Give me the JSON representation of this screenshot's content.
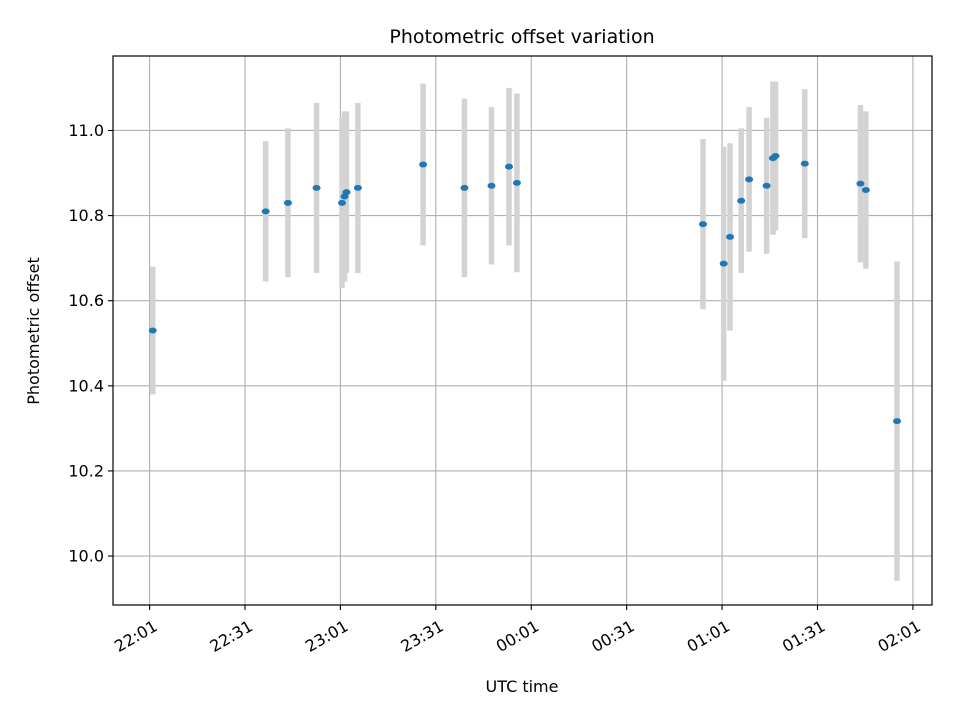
{
  "chart_data": {
    "type": "scatter",
    "title": "Photometric offset variation",
    "xlabel": "UTC time",
    "ylabel": "Photometric offset",
    "x_ticks": [
      "22:01",
      "22:31",
      "23:01",
      "23:31",
      "00:01",
      "00:31",
      "01:01",
      "01:31",
      "02:01"
    ],
    "x_tick_minutes": [
      0,
      30,
      60,
      90,
      120,
      150,
      180,
      210,
      240
    ],
    "x_start": "22:01",
    "x_unit": "minutes after 22:01 UTC",
    "xlim": [
      -11.5,
      246
    ],
    "y_ticks": [
      "10.0",
      "10.2",
      "10.4",
      "10.6",
      "10.8",
      "11.0"
    ],
    "y_tick_values": [
      10.0,
      10.2,
      10.4,
      10.6,
      10.8,
      11.0
    ],
    "ylim": [
      9.885,
      11.175
    ],
    "grid": true,
    "colors": {
      "point": "#1f77b4",
      "errorbar": "#d3d3d3",
      "grid": "#b0b0b0"
    },
    "points": [
      {
        "x": 1,
        "y": 10.53,
        "err": 0.15
      },
      {
        "x": 36.5,
        "y": 10.81,
        "err": 0.165
      },
      {
        "x": 43.5,
        "y": 10.83,
        "err": 0.175
      },
      {
        "x": 52.5,
        "y": 10.865,
        "err": 0.2
      },
      {
        "x": 60.5,
        "y": 10.83,
        "err": 0.2
      },
      {
        "x": 61.3,
        "y": 10.845,
        "err": 0.2
      },
      {
        "x": 61.9,
        "y": 10.855,
        "err": 0.19
      },
      {
        "x": 65.5,
        "y": 10.865,
        "err": 0.2
      },
      {
        "x": 86,
        "y": 10.92,
        "err": 0.19
      },
      {
        "x": 99,
        "y": 10.865,
        "err": 0.21
      },
      {
        "x": 107.5,
        "y": 10.87,
        "err": 0.185
      },
      {
        "x": 113,
        "y": 10.915,
        "err": 0.185
      },
      {
        "x": 115.5,
        "y": 10.877,
        "err": 0.21
      },
      {
        "x": 174,
        "y": 10.78,
        "err": 0.2
      },
      {
        "x": 180.5,
        "y": 10.687,
        "err": 0.275
      },
      {
        "x": 182.5,
        "y": 10.75,
        "err": 0.22
      },
      {
        "x": 186,
        "y": 10.835,
        "err": 0.17
      },
      {
        "x": 188.5,
        "y": 10.885,
        "err": 0.17
      },
      {
        "x": 194,
        "y": 10.87,
        "err": 0.16
      },
      {
        "x": 196,
        "y": 10.935,
        "err": 0.18
      },
      {
        "x": 196.8,
        "y": 10.94,
        "err": 0.175
      },
      {
        "x": 206,
        "y": 10.922,
        "err": 0.175
      },
      {
        "x": 223.5,
        "y": 10.875,
        "err": 0.185
      },
      {
        "x": 225.2,
        "y": 10.86,
        "err": 0.185
      },
      {
        "x": 235,
        "y": 10.317,
        "err": 0.375
      }
    ]
  }
}
